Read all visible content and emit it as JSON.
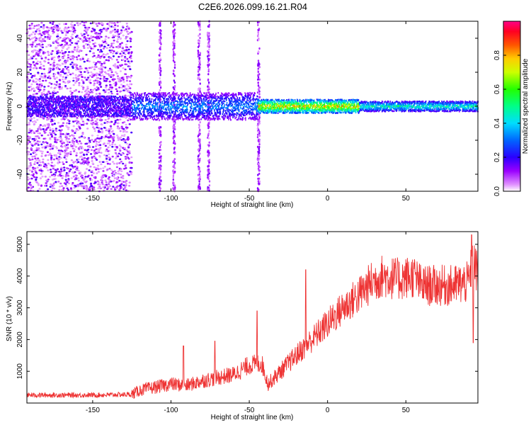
{
  "title": "C2E6.2026.099.16.21.R04",
  "colors": {
    "snr_line": "#ee3333",
    "colormap": [
      "#ffffff",
      "#e6c8ff",
      "#c890ff",
      "#9a50ff",
      "#6a00ff",
      "#1a00ff",
      "#0055ff",
      "#00ccff",
      "#00ff88",
      "#44ff00",
      "#ddff00",
      "#ff9900",
      "#ff0000",
      "#ff0066"
    ]
  },
  "chart_data": [
    {
      "type": "heatmap",
      "title": "C2E6.2026.099.16.21.R04",
      "xlabel": "Height of straight line (km)",
      "ylabel": "Frequency (Hz)",
      "xlim": [
        -192,
        96
      ],
      "ylim": [
        -50,
        50
      ],
      "x_ticks": [
        -150,
        -100,
        -50,
        0,
        50
      ],
      "y_ticks": [
        -40,
        -20,
        0,
        20,
        40
      ],
      "colorbar": {
        "label": "Normalized spectral amplitude",
        "range": [
          0.0,
          1.0
        ],
        "ticks": [
          0.0,
          0.2,
          0.4,
          0.6,
          0.8
        ]
      },
      "bands": [
        {
          "x_range": [
            -192,
            -125
          ],
          "freq_spread": 50,
          "amplitude": 0.15,
          "pattern": "scattered noise"
        },
        {
          "x_range": [
            -125,
            -45
          ],
          "freq_spread": 8,
          "amplitude": 0.35,
          "pattern": "narrow band with speckle"
        },
        {
          "x_range": [
            -45,
            20
          ],
          "freq_spread": 4,
          "amplitude": 0.8,
          "pattern": "strong narrow signal"
        },
        {
          "x_range": [
            20,
            96
          ],
          "freq_spread": 3,
          "amplitude": 0.5,
          "pattern": "stable narrow signal"
        }
      ],
      "vertical_streaks_x": [
        -107,
        -98,
        -82,
        -76,
        -44
      ]
    },
    {
      "type": "line",
      "xlabel": "Height of straight line (km)",
      "ylabel": "SNR (10 * v/v)",
      "xlim": [
        -192,
        96
      ],
      "ylim": [
        0,
        5400
      ],
      "x_ticks": [
        -150,
        -100,
        -50,
        0,
        50
      ],
      "y_ticks": [
        1000,
        2000,
        3000,
        4000,
        5000
      ],
      "envelope": {
        "x": [
          -192,
          -150,
          -125,
          -120,
          -100,
          -90,
          -80,
          -60,
          -50,
          -42,
          -38,
          -30,
          -20,
          -10,
          0,
          10,
          20,
          28,
          35,
          45,
          55,
          60,
          70,
          80,
          90,
          93,
          96
        ],
        "y": [
          250,
          250,
          270,
          400,
          600,
          550,
          700,
          900,
          1200,
          1250,
          600,
          1000,
          1500,
          2000,
          2500,
          3000,
          3400,
          3800,
          4000,
          3900,
          4000,
          3700,
          3700,
          3700,
          3800,
          4500,
          4000
        ]
      },
      "noise_amplitude": 350,
      "spikes": [
        {
          "x": -92,
          "y": 1800
        },
        {
          "x": -72,
          "y": 1950
        },
        {
          "x": -45,
          "y": 2900
        },
        {
          "x": -14,
          "y": 4200
        },
        {
          "x": 92,
          "y": 5300
        },
        {
          "x": 93,
          "y": 1900
        }
      ]
    }
  ]
}
